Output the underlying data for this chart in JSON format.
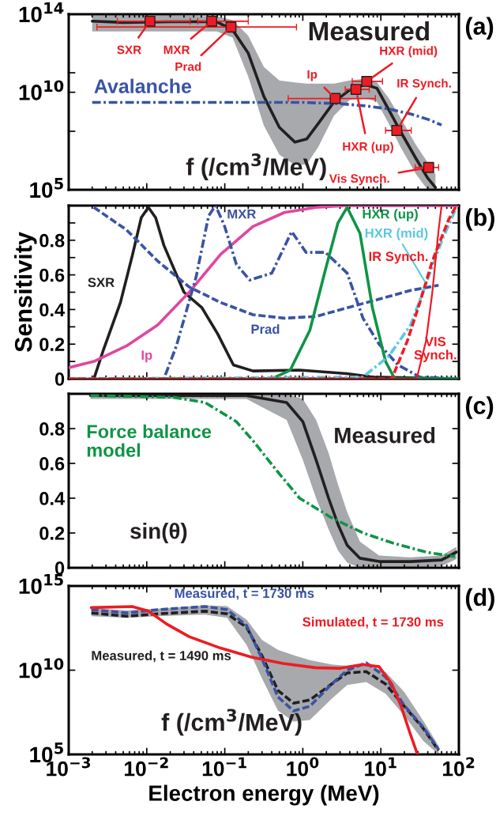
{
  "chart_data": [
    {
      "type": "line",
      "title": "(a)",
      "ylabel": "f (/cm$^{3}$/MeV)",
      "log": "xy",
      "tick_labels": "y",
      "xlim": [
        0.001,
        100
      ],
      "xticks": [
        {
          "value": 0.001,
          "label": null
        },
        {
          "value": 0.01,
          "label": null
        },
        {
          "value": 0.1,
          "label": null
        },
        {
          "value": 1,
          "label": null
        },
        {
          "value": 10,
          "label": null
        },
        {
          "value": 100,
          "label": null
        }
      ],
      "ylim": [
        100000.0,
        100000000000000.0
      ],
      "yticks": [
        {
          "value": 100000.0,
          "label": "10$^{5}$"
        },
        {
          "value": 100000000.0,
          "label": null
        },
        {
          "value": 10000000000.0,
          "label": "10$^{10}$"
        },
        {
          "value": 100000000000.0,
          "label": null
        },
        {
          "value": 100000000000000.0,
          "label": "10$^{14}$"
        }
      ],
      "series": [
        {
          "name": "Measured",
          "type": "line",
          "color": "#231f20",
          "line_style": "solid",
          "x": [
            0.002,
            0.005,
            0.02,
            0.079,
            0.126,
            0.2,
            0.316,
            0.5,
            0.79,
            1.12,
            1.58,
            2.51,
            3.98,
            6.31,
            8.91,
            12.6,
            17.8,
            28.2,
            39.8,
            50.1
          ],
          "values": [
            44000000000000.0,
            38000000000000.0,
            41000000000000.0,
            41000000000000.0,
            16000000000000.0,
            1000000000000.0,
            6300000000.0,
            160000000.0,
            28000000.0,
            40000000.0,
            250000000.0,
            3200000000.0,
            13000000000.0,
            25000000000.0,
            16000000000.0,
            1300000000.0,
            100000000.0,
            4000000.0,
            400000.0,
            130000.0
          ],
          "upper": [
            87000000000000.0,
            87000000000000.0,
            87000000000000.0,
            79000000000000.0,
            50000000000000.0,
            7900000000000.0,
            200000000000.0,
            40000000000.0,
            32000000000.0,
            28000000000.0,
            28000000000.0,
            28000000000.0,
            40000000000.0,
            50000000000.0,
            32000000000.0,
            5000000000.0,
            500000000.0,
            20000000.0,
            2500000.0,
            630000.0
          ],
          "lower": [
            13000000000000.0,
            13000000000000.0,
            13000000000000.0,
            13000000000000.0,
            6300000000000.0,
            63000000000.0,
            200000000.0,
            6300000.0,
            1800000.0,
            2000000.0,
            16000000.0,
            630000000.0,
            4000000000.0,
            5000000000.0,
            3200000000.0,
            250000000.0,
            16000000.0,
            630000.0,
            100000.0,
            100000.0
          ]
        },
        {
          "name": "Avalanche",
          "type": "line",
          "color": "#3953a4",
          "line_style": "dashdot",
          "x": [
            0.002,
            0.1,
            1,
            3,
            6.3,
            12.6,
            25,
            40,
            60
          ],
          "values": [
            3000000000.0,
            3000000000.0,
            3000000000.0,
            2600000000.0,
            2000000000.0,
            1400000000.0,
            740000000.0,
            410000000.0,
            210000000.0
          ]
        },
        {
          "type": "scatter",
          "color": "#ed1c24",
          "marker": "square",
          "x": [
            0.011,
            0.068,
            0.12,
            2.6,
            4.8,
            6.6,
            16,
            41
          ],
          "values": [
            44000000000000.0,
            44000000000000.0,
            22000000000000.0,
            4800000000.0,
            14000000000.0,
            36000000000.0,
            110000000.0,
            1400000.0
          ],
          "xerrors": [
            [
              0.0042,
              0.036
            ],
            [
              0.045,
              0.2
            ],
            [
              0.0023,
              0.83
            ],
            [
              0.65,
              8.5
            ],
            [
              3.5,
              7.1
            ],
            [
              4.3,
              10.5
            ],
            [
              11.5,
              24.5
            ],
            [
              27.5,
              55
            ]
          ]
        }
      ],
      "annotations": [
        {
          "text": "SXR",
          "x": 0.011,
          "y": 44000000000000.0
        },
        {
          "text": "MXR",
          "x": 0.068,
          "y": 44000000000000.0
        },
        {
          "text": "Prad",
          "x": 0.12,
          "y": 22000000000000.0
        },
        {
          "text": "Ip",
          "x": 2.6,
          "y": 4800000000.0
        },
        {
          "text": "HXR (up)",
          "x": 4.8,
          "y": 14000000000.0
        },
        {
          "text": "HXR (mid)",
          "x": 6.6,
          "y": 36000000000.0
        },
        {
          "text": "IR Synch.",
          "x": 16,
          "y": 110000000.0
        },
        {
          "text": "Vis Synch.",
          "x": 41,
          "y": 1400000.0
        }
      ]
    },
    {
      "type": "line",
      "title": "(b)",
      "ylabel": "Sensitivity",
      "log": "x",
      "tick_labels": "y",
      "xlim": [
        0.001,
        100
      ],
      "xticks": [
        {
          "value": 0.001,
          "label": null
        },
        {
          "value": 0.01,
          "label": null
        },
        {
          "value": 0.1,
          "label": null
        },
        {
          "value": 1,
          "label": null
        },
        {
          "value": 10,
          "label": null
        },
        {
          "value": 100,
          "label": null
        }
      ],
      "ylim": [
        0,
        1
      ],
      "yticks": [
        0,
        {
          "value": 0.1,
          "label": null
        },
        0.2,
        {
          "value": 0.3,
          "label": null
        },
        0.4,
        {
          "value": 0.5,
          "label": null
        },
        0.6,
        {
          "value": 0.7,
          "label": null
        },
        0.8,
        {
          "value": 0.9,
          "label": null
        },
        {
          "value": 1,
          "label": null
        }
      ],
      "series": [
        {
          "name": "SXR",
          "color": "#231f20",
          "line_style": "solid",
          "x": [
            0.0021,
            0.0028,
            0.0046,
            0.0066,
            0.0085,
            0.0105,
            0.013,
            0.0166,
            0.03,
            0.051,
            0.081,
            0.129,
            0.23,
            0.91,
            3.7,
            7.8,
            98
          ],
          "values": [
            0,
            0.17,
            0.44,
            0.72,
            0.93,
            0.99,
            0.93,
            0.77,
            0.5,
            0.41,
            0.26,
            0.08,
            0.045,
            0.05,
            0.03,
            0.01,
            0
          ]
        },
        {
          "name": "Ip",
          "color": "#e0479e",
          "line_style": "solid",
          "x": [
            0.001,
            0.0021,
            0.0055,
            0.0138,
            0.035,
            0.089,
            0.23,
            0.58,
            1.48,
            3.7,
            98
          ],
          "values": [
            0.064,
            0.1,
            0.19,
            0.31,
            0.5,
            0.72,
            0.88,
            0.96,
            0.99,
            1.0,
            1.0
          ]
        },
        {
          "name": "Prad",
          "color": "#3953a4",
          "line_style": "dashed",
          "x": [
            0.0021,
            0.0055,
            0.0138,
            0.035,
            0.089,
            0.23,
            0.58,
            1.48,
            3.7,
            9.5,
            24,
            55
          ],
          "values": [
            0.99,
            0.86,
            0.68,
            0.53,
            0.44,
            0.37,
            0.35,
            0.36,
            0.41,
            0.46,
            0.51,
            0.54
          ]
        },
        {
          "name": "MXR",
          "color": "#3953a4",
          "line_style": "dashdot",
          "x": [
            0.001,
            0.0166,
            0.024,
            0.043,
            0.062,
            0.076,
            0.098,
            0.141,
            0.209,
            0.4,
            0.72,
            1.1,
            1.95,
            3.7,
            5.9,
            9.5,
            16.6,
            31.6,
            98
          ],
          "values": [
            0,
            0,
            0.19,
            0.59,
            0.94,
            1.0,
            0.89,
            0.66,
            0.57,
            0.61,
            0.85,
            0.73,
            0.73,
            0.61,
            0.35,
            0.2,
            0.08,
            0.01,
            0
          ]
        },
        {
          "name": "HXR (up)",
          "color": "#0f9445",
          "line_style": "solid",
          "x": [
            0.001,
            0.4,
            0.69,
            1.23,
            1.95,
            2.82,
            3.7,
            5.4,
            7.8,
            11.5,
            15.1,
            98
          ],
          "values": [
            0,
            0,
            0.05,
            0.28,
            0.63,
            0.9,
            0.99,
            0.84,
            0.41,
            0.1,
            0,
            0
          ]
        },
        {
          "name": "HXR (mid)",
          "color": "#5bc8e0",
          "line_style": "dashdot",
          "x": [
            0.001,
            5.9,
            12.6,
            24,
            38,
            62,
            89
          ],
          "values": [
            0,
            0.01,
            0.13,
            0.31,
            0.55,
            0.81,
            0.97
          ]
        },
        {
          "name": "IR Synch.",
          "color": "#ed1c24",
          "line_style": "dashed",
          "x": [
            0.001,
            13.8,
            21.9,
            31.6,
            45.7,
            74,
            93
          ],
          "values": [
            0,
            0,
            0.22,
            0.44,
            0.68,
            0.92,
            1.0
          ]
        },
        {
          "name": "VIS\nSynch.",
          "color": "#ed1c24",
          "line_style": "solid",
          "x": [
            0.001,
            28.8,
            38,
            45.7,
            55,
            60
          ],
          "values": [
            0,
            0,
            0.22,
            0.5,
            0.86,
            1.0
          ]
        }
      ]
    },
    {
      "type": "line",
      "title": "(c)",
      "ylabel": "sin(θ)",
      "log": "x",
      "tick_labels": "y",
      "xlim": [
        0.001,
        100
      ],
      "xticks": [
        {
          "value": 0.001,
          "label": null
        },
        {
          "value": 0.01,
          "label": null
        },
        {
          "value": 0.1,
          "label": null
        },
        {
          "value": 1,
          "label": null
        },
        {
          "value": 10,
          "label": null
        },
        {
          "value": 100,
          "label": null
        }
      ],
      "ylim": [
        0,
        1
      ],
      "yticks": [
        0,
        0.2,
        0.4,
        0.6,
        0.8
      ],
      "series": [
        {
          "name": "Measured",
          "color": "#231f20",
          "line_style": "solid",
          "x": [
            0.0019,
            0.19,
            0.62,
            1.0,
            1.48,
            2.14,
            2.82,
            3.7,
            5.4,
            9.5,
            24,
            60,
            93
          ],
          "values": [
            0.99,
            0.99,
            0.95,
            0.84,
            0.62,
            0.4,
            0.25,
            0.13,
            0.055,
            0.036,
            0.036,
            0.045,
            0.09
          ],
          "upper": [
            1,
            1,
            1,
            0.97,
            0.85,
            0.66,
            0.48,
            0.32,
            0.15,
            0.07,
            0.06,
            0.07,
            0.12
          ],
          "lower": [
            0.97,
            0.97,
            0.85,
            0.62,
            0.4,
            0.22,
            0.1,
            0.03,
            0,
            0,
            0,
            0.01,
            0.05
          ]
        },
        {
          "name": "Force balance\nmodel",
          "color": "#0f9445",
          "line_style": "dashdot",
          "x": [
            0.0019,
            0.022,
            0.056,
            0.141,
            0.23,
            0.48,
            0.91,
            2.29,
            5.9,
            14.8,
            38,
            89
          ],
          "values": [
            0.99,
            0.98,
            0.95,
            0.84,
            0.73,
            0.55,
            0.4,
            0.29,
            0.2,
            0.14,
            0.09,
            0.064
          ]
        }
      ]
    },
    {
      "type": "line",
      "title": "(d)",
      "ylabel": "f (/cm$^{3}$/MeV)",
      "xlabel": "Electron energy (MeV)",
      "log": "xy",
      "xlim": [
        0.001,
        100
      ],
      "xticks": [
        {
          "value": 0.001,
          "label": "10$^{−3}$"
        },
        {
          "value": 0.01,
          "label": "10$^{−2}$"
        },
        {
          "value": 0.1,
          "label": "10$^{−1}$"
        },
        {
          "value": 1,
          "label": "10$^{0}$"
        },
        {
          "value": 10,
          "label": "10$^{1}$"
        },
        {
          "value": 100,
          "label": "10$^{2}$"
        }
      ],
      "ylim": [
        100000.0,
        1000000000000000.0
      ],
      "yticks": [
        {
          "value": 100000.0,
          "label": "10$^{5}$"
        },
        {
          "value": 10000000000.0,
          "label": "10$^{10}$"
        },
        {
          "value": 1000000000000000.0,
          "label": "10$^{15}$"
        }
      ],
      "series": [
        {
          "name": "Measured, t = 1490 ms",
          "color": "#231f20",
          "line_style": "dashed",
          "x": [
            0.00195,
            0.0055,
            0.0138,
            0.056,
            0.107,
            0.19,
            0.3,
            0.48,
            0.76,
            1.23,
            2.34,
            3.7,
            6.5,
            11.5,
            20,
            35,
            55
          ],
          "values": [
            25000000000000.0,
            16000000000000.0,
            22000000000000.0,
            32000000000000.0,
            22000000000000.0,
            3600000000000.0,
            72000000000.0,
            630000000.0,
            110000000.0,
            170000000.0,
            1500000000.0,
            6800000000.0,
            8300000000.0,
            1500000000.0,
            72000000.0,
            3500000.0,
            170000.0
          ],
          "upper": [
            48000000000000.0,
            35000000000000.0,
            45000000000000.0,
            71000000000000.0,
            63000000000000.0,
            10000000000000.0,
            630000000000.0,
            160000000000.0,
            79000000000.0,
            40000000000.0,
            22000000000.0,
            18000000000.0,
            22000000000.0,
            7900000000.0,
            500000000.0,
            10000000.0,
            320000.0
          ],
          "lower": [
            16000000000000.0,
            13000000000000.0,
            16000000000000.0,
            20000000000000.0,
            13000000000000.0,
            320000000000.0,
            3200000000.0,
            40000000.0,
            8900000.0,
            11000000.0,
            200000000.0,
            1300000000.0,
            2000000000.0,
            400000000.0,
            20000000.0,
            630000.0,
            100000.0
          ]
        },
        {
          "name": "Measured, t = 1730 ms",
          "color": "#3953a4",
          "line_style": "dashed",
          "x": [
            0.00195,
            0.0055,
            0.0138,
            0.056,
            0.107,
            0.19,
            0.3,
            0.48,
            0.76,
            1.23,
            2.34,
            3.7,
            6.5,
            11.5,
            20,
            35,
            55
          ],
          "values": [
            39000000000000.0,
            25000000000000.0,
            39000000000000.0,
            60000000000000.0,
            39000000000000.0,
            4500000000000.0,
            48000000000.0,
            260000000.0,
            38000000.0,
            72000000.0,
            1500000000.0,
            10000000000.0,
            27000000000.0,
            4000000000.0,
            79000000.0,
            4000000.0,
            200000.0
          ]
        },
        {
          "name": "Simulated, t = 1730 ms",
          "color": "#ed1c24",
          "line_style": "solid",
          "x": [
            0.00195,
            0.0065,
            0.0105,
            0.018,
            0.035,
            0.087,
            0.22,
            0.56,
            1.45,
            3.0,
            5.9,
            9.5,
            13.8,
            18.2,
            24,
            29.5
          ],
          "values": [
            52000000000000.0,
            60000000000000.0,
            32000000000000.0,
            5500000000000.0,
            980000000000.0,
            210000000000.0,
            59000000000.0,
            25000000000.0,
            14000000000.0,
            13000000000.0,
            22000000000.0,
            16000000000.0,
            1500000000.0,
            72000000.0,
            1500000.0,
            100000.0
          ]
        }
      ]
    }
  ]
}
